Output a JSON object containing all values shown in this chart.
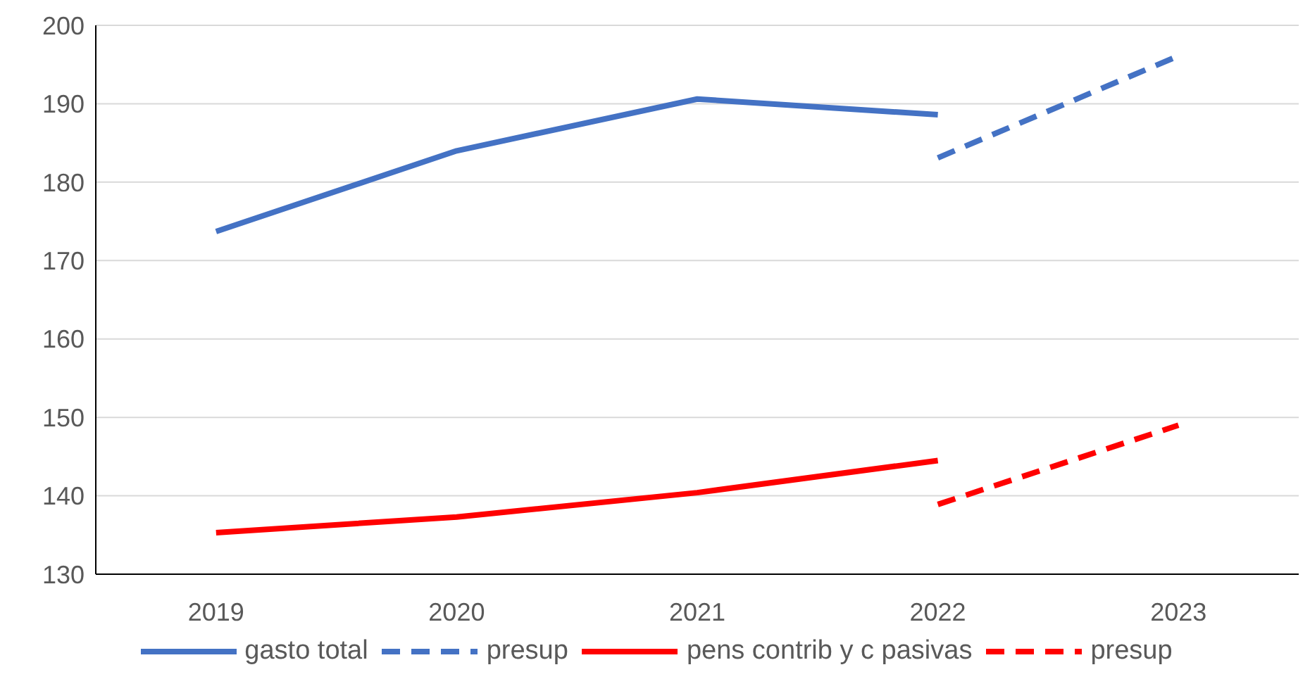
{
  "chart_data": {
    "type": "line",
    "categories": [
      "2019",
      "2020",
      "2021",
      "2022",
      "2023"
    ],
    "series": [
      {
        "name": "gasto total",
        "color": "#4472c4",
        "line_style": "solid",
        "values": [
          173.7,
          184.0,
          190.6,
          188.6,
          null
        ]
      },
      {
        "name": "presup",
        "color": "#4472c4",
        "line_style": "dashed",
        "values": [
          null,
          null,
          null,
          183.1,
          196.1
        ]
      },
      {
        "name": "pens contrib y c pasivas",
        "color": "#ff0000",
        "line_style": "solid",
        "values": [
          135.3,
          137.3,
          140.4,
          144.5,
          null
        ]
      },
      {
        "name": "presup",
        "color": "#ff0000",
        "line_style": "dashed",
        "values": [
          null,
          null,
          null,
          138.9,
          149.0
        ]
      }
    ],
    "ylim": [
      130,
      200
    ],
    "yticks": [
      130,
      140,
      150,
      160,
      170,
      180,
      190,
      200
    ],
    "grid": "y",
    "legend": "bottom",
    "marker": "none"
  }
}
